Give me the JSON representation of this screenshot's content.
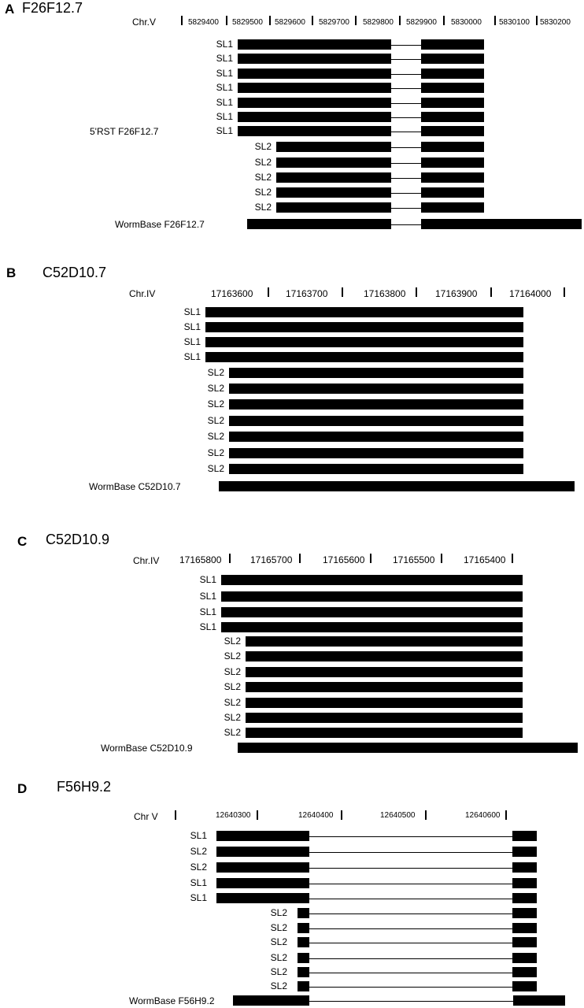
{
  "panels": [
    {
      "letter": "A",
      "title": "F26F12.7",
      "chr": "Chr.V",
      "side_label": "5'RST  F26F12.7",
      "ticks": [
        "5829400",
        "5829500",
        "5829600",
        "5829700",
        "5829800",
        "5829900",
        "5830000",
        "5830100",
        "5830200"
      ],
      "rows": [
        "SL1",
        "SL1",
        "SL1",
        "SL1",
        "SL1",
        "SL1",
        "SL1",
        "SL2",
        "SL2",
        "SL2",
        "SL2",
        "SL2"
      ],
      "wormbase": "WormBase F26F12.7"
    },
    {
      "letter": "B",
      "title": "C52D10.7",
      "chr": "Chr.IV",
      "ticks": [
        "17163600",
        "17163700",
        "17163800",
        "17163900",
        "17164000"
      ],
      "rows": [
        "SL1",
        "SL1",
        "SL1",
        "SL1",
        "SL2",
        "SL2",
        "SL2",
        "SL2",
        "SL2",
        "SL2",
        "SL2"
      ],
      "wormbase": "WormBase C52D10.7"
    },
    {
      "letter": "C",
      "title": "C52D10.9",
      "chr": "Chr.IV",
      "ticks": [
        "17165800",
        "17165700",
        "17165600",
        "17165500",
        "17165400"
      ],
      "rows": [
        "SL1",
        "SL1",
        "SL1",
        "SL1",
        "SL2",
        "SL2",
        "SL2",
        "SL2",
        "SL2",
        "SL2",
        "SL2"
      ],
      "wormbase": "WormBase C52D10.9"
    },
    {
      "letter": "D",
      "title": "F56H9.2",
      "chr": "Chr V",
      "ticks": [
        "12640300",
        "12640400",
        "12640500",
        "12640600"
      ],
      "rows": [
        "SL1",
        "SL2",
        "SL2",
        "SL1",
        "SL1",
        "SL2",
        "SL2",
        "SL2",
        "SL2",
        "SL2",
        "SL2"
      ],
      "wormbase": "WormBase F56H9.2"
    }
  ]
}
